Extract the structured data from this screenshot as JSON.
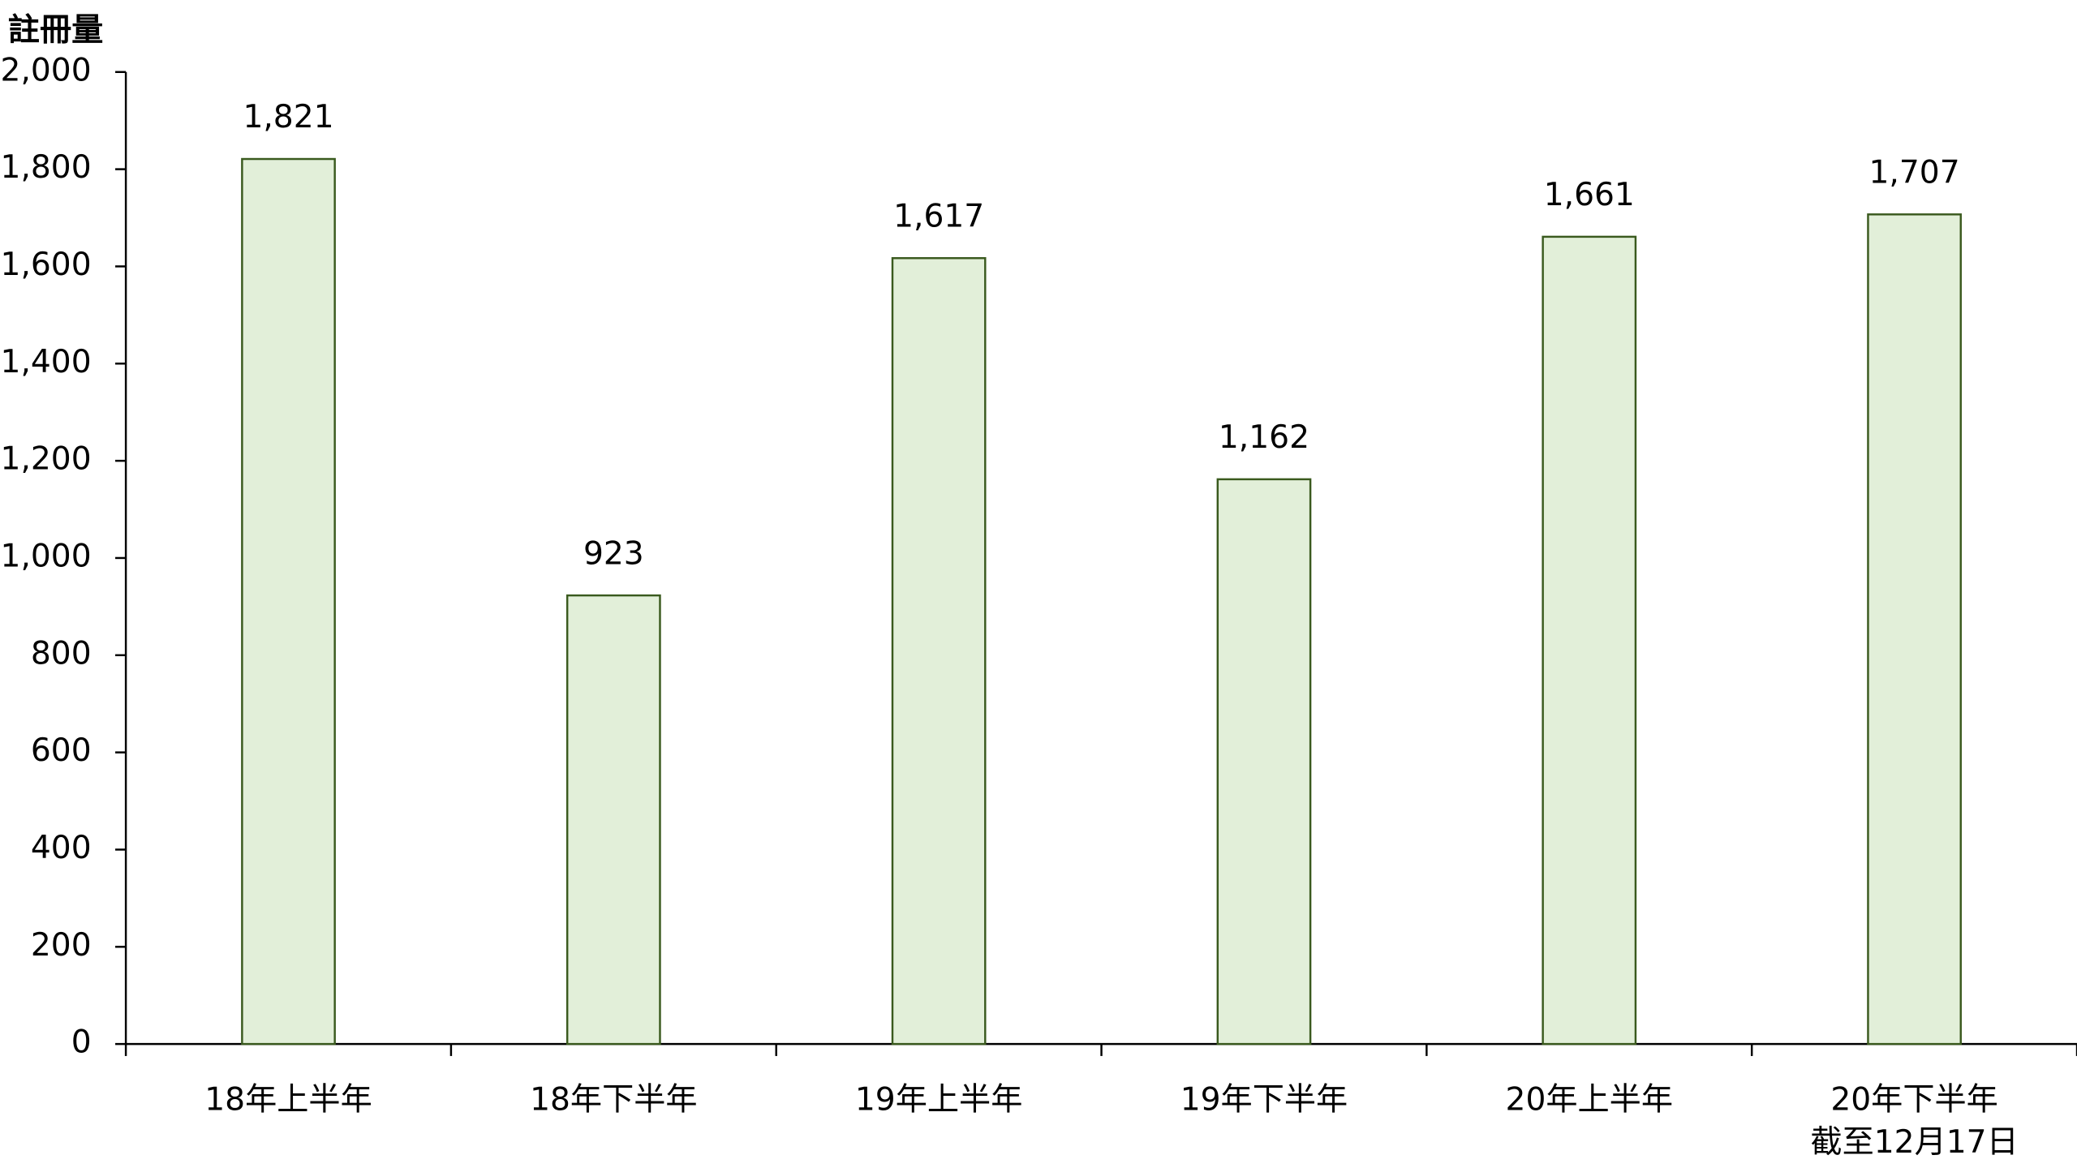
{
  "chart_data": {
    "type": "bar",
    "y_label": "註冊量",
    "categories": [
      "18年上半年",
      "18年下半年",
      "19年上半年",
      "19年下半年",
      "20年上半年",
      [
        "20年下半年",
        "截至12月17日"
      ]
    ],
    "values": [
      1821,
      923,
      1617,
      1162,
      1661,
      1707
    ],
    "value_labels": [
      "1,821",
      "923",
      "1,617",
      "1,162",
      "1,661",
      "1,707"
    ],
    "color": "#e2efd9",
    "edge_color": "#3a5a1e",
    "ylim": [
      0,
      2000
    ],
    "yticks": [
      0,
      200,
      400,
      600,
      800,
      {
        "value": 1000,
        "label": "1,000"
      },
      {
        "value": 1200,
        "label": "1,200"
      },
      {
        "value": 1400,
        "label": "1,400"
      },
      {
        "value": 1600,
        "label": "1,600"
      },
      {
        "value": 1800,
        "label": "1,800"
      },
      {
        "value": 2000,
        "label": "2,000"
      }
    ],
    "grid": false
  }
}
